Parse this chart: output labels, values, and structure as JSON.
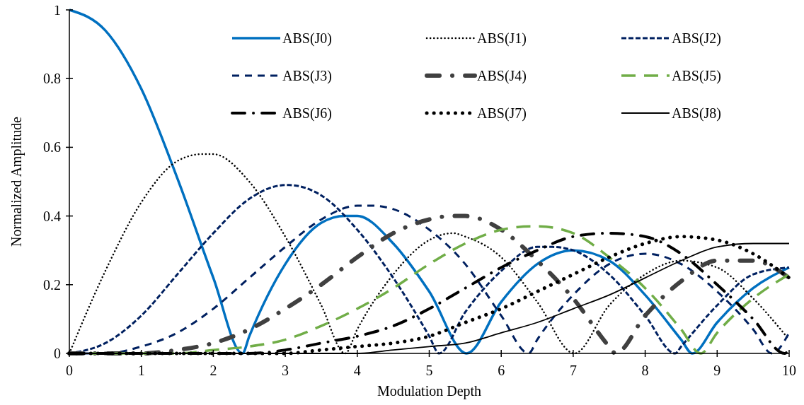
{
  "chart_data": {
    "type": "line",
    "xlabel": "Modulation Depth",
    "ylabel": "Normalized Amplitude",
    "xlim": [
      0,
      10
    ],
    "xticks": [
      0,
      1,
      2,
      3,
      4,
      5,
      6,
      7,
      8,
      9,
      10
    ],
    "ylim": [
      0,
      1
    ],
    "yticks": [
      0,
      0.2,
      0.4,
      0.6,
      0.8,
      1
    ],
    "grid": false,
    "legend": "top right",
    "marker": "none",
    "series": [
      {
        "name": "ABS(J0)",
        "color": "#0070c0",
        "line_style": "solid",
        "x": [
          0,
          0.5,
          1,
          1.5,
          2,
          2.405,
          2.5,
          3,
          3.5,
          3.83,
          4,
          4.5,
          5,
          5.52,
          6,
          6.5,
          7,
          7.5,
          8,
          8.5,
          8.654,
          9,
          9.5,
          10
        ],
        "values": [
          1,
          0.94,
          0.77,
          0.51,
          0.22,
          0,
          0.05,
          0.26,
          0.38,
          0.4,
          0.4,
          0.32,
          0.18,
          0,
          0.15,
          0.26,
          0.3,
          0.27,
          0.17,
          0.04,
          0,
          0.09,
          0.19,
          0.25
        ]
      },
      {
        "name": "ABS(J1)",
        "color": "#000000",
        "line_style": "dotted",
        "x": [
          0,
          0.5,
          1,
          1.5,
          1.84,
          2,
          2.5,
          3,
          3.5,
          3.832,
          4,
          4.5,
          5,
          5.33,
          5.5,
          6,
          6.5,
          7.016,
          7.5,
          8,
          8.5,
          9,
          9.5,
          10
        ],
        "values": [
          0,
          0.24,
          0.44,
          0.56,
          0.58,
          0.58,
          0.5,
          0.34,
          0.14,
          0,
          0.07,
          0.23,
          0.33,
          0.35,
          0.34,
          0.28,
          0.15,
          0,
          0.14,
          0.23,
          0.27,
          0.25,
          0.16,
          0.04
        ]
      },
      {
        "name": "ABS(J2)",
        "color": "#002060",
        "line_style": "dashdot",
        "x": [
          0,
          0.5,
          1,
          1.5,
          2,
          2.5,
          3,
          3.05,
          3.5,
          4,
          4.5,
          5,
          5.136,
          5.5,
          6,
          6.5,
          6.71,
          7,
          7.5,
          8,
          8.417,
          8.5,
          9,
          9.5,
          10
        ],
        "values": [
          0,
          0.03,
          0.11,
          0.23,
          0.35,
          0.45,
          0.49,
          0.49,
          0.46,
          0.36,
          0.22,
          0.05,
          0,
          0.12,
          0.24,
          0.31,
          0.31,
          0.3,
          0.23,
          0.11,
          0,
          0.02,
          0.14,
          0.23,
          0.25
        ]
      },
      {
        "name": "ABS(J3)",
        "color": "#002060",
        "line_style": "dashed",
        "x": [
          0,
          0.5,
          1,
          1.5,
          2,
          2.5,
          3,
          3.5,
          4,
          4.2,
          4.5,
          5,
          5.5,
          6,
          6.38,
          6.5,
          7,
          7.5,
          8,
          8.02,
          8.5,
          9,
          9.5,
          9.761,
          10
        ],
        "values": [
          0,
          0,
          0.02,
          0.06,
          0.13,
          0.22,
          0.31,
          0.39,
          0.43,
          0.43,
          0.42,
          0.36,
          0.26,
          0.11,
          0,
          0.04,
          0.17,
          0.26,
          0.29,
          0.29,
          0.26,
          0.18,
          0.07,
          0,
          0.06
        ]
      },
      {
        "name": "ABS(J4)",
        "color": "#404040",
        "line_style": "longdashdot",
        "x": [
          0,
          0.5,
          1,
          1.5,
          2,
          2.5,
          3,
          3.5,
          4,
          4.5,
          5,
          5.32,
          5.5,
          6,
          6.5,
          7,
          7.5,
          7.588,
          8,
          8.5,
          9,
          9.5,
          10
        ],
        "values": [
          0,
          0,
          0,
          0.01,
          0.03,
          0.07,
          0.13,
          0.2,
          0.28,
          0.35,
          0.39,
          0.4,
          0.4,
          0.36,
          0.27,
          0.16,
          0.02,
          0,
          0.11,
          0.21,
          0.27,
          0.27,
          0.22
        ]
      },
      {
        "name": "ABS(J5)",
        "color": "#70ad47",
        "line_style": "longdash",
        "x": [
          0,
          0.5,
          1,
          1.5,
          2,
          2.5,
          3,
          3.5,
          4,
          4.5,
          5,
          5.5,
          6,
          6.42,
          6.5,
          7,
          7.5,
          8,
          8.5,
          8.771,
          9,
          9.5,
          10
        ],
        "values": [
          0,
          0,
          0,
          0,
          0.01,
          0.02,
          0.04,
          0.08,
          0.13,
          0.19,
          0.26,
          0.32,
          0.36,
          0.37,
          0.37,
          0.35,
          0.28,
          0.19,
          0.07,
          0,
          0.06,
          0.16,
          0.23
        ]
      },
      {
        "name": "ABS(J6)",
        "color": "#000000",
        "line_style": "longdashdot",
        "x": [
          0,
          0.5,
          1,
          1.5,
          2,
          2.5,
          3,
          3.5,
          4,
          4.5,
          5,
          5.5,
          6,
          6.5,
          7,
          7.5,
          8,
          8.5,
          9,
          9.5,
          9.936,
          10
        ],
        "values": [
          0,
          0,
          0,
          0,
          0,
          0,
          0.01,
          0.03,
          0.05,
          0.08,
          0.13,
          0.19,
          0.25,
          0.3,
          0.34,
          0.35,
          0.34,
          0.29,
          0.2,
          0.1,
          0,
          0.01
        ]
      },
      {
        "name": "ABS(J7)",
        "color": "#000000",
        "line_style": "dotted",
        "x": [
          0,
          0.5,
          1,
          1.5,
          2,
          2.5,
          3,
          3.5,
          4,
          4.5,
          5,
          5.5,
          6,
          6.5,
          7,
          7.5,
          8,
          8.5,
          9,
          9.5,
          10
        ],
        "values": [
          0,
          0,
          0,
          0,
          0,
          0,
          0,
          0.01,
          0.02,
          0.03,
          0.05,
          0.09,
          0.13,
          0.18,
          0.23,
          0.28,
          0.32,
          0.34,
          0.33,
          0.29,
          0.22
        ]
      },
      {
        "name": "ABS(J8)",
        "color": "#000000",
        "line_style": "solid",
        "x": [
          0,
          0.5,
          1,
          1.5,
          2,
          2.5,
          3,
          3.5,
          4,
          4.5,
          5,
          5.5,
          6,
          6.5,
          7,
          7.5,
          8,
          8.5,
          9,
          9.5,
          10
        ],
        "values": [
          0,
          0,
          0,
          0,
          0,
          0,
          0,
          0,
          0,
          0.01,
          0.02,
          0.03,
          0.06,
          0.09,
          0.13,
          0.17,
          0.22,
          0.27,
          0.31,
          0.32,
          0.32
        ]
      }
    ]
  }
}
